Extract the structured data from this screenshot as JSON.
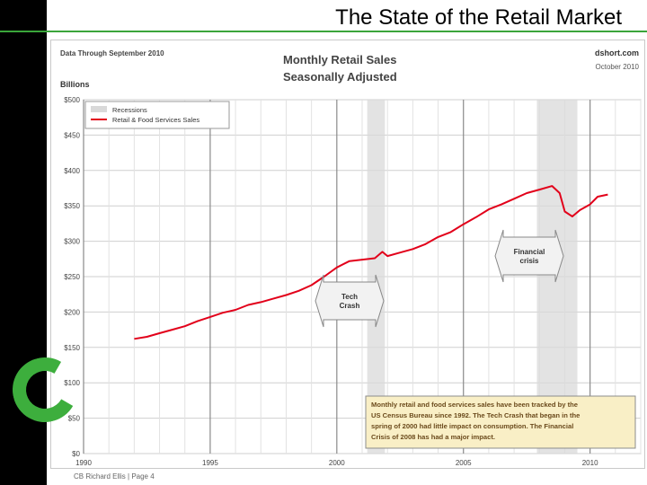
{
  "slide": {
    "title": "The State of the Retail Market",
    "footer": "CB Richard Ellis | Page 4"
  },
  "chart_data": {
    "type": "line",
    "title": "Monthly Retail Sales",
    "subtitle": "Seasonally Adjusted",
    "note_left": "Data Through September 2010",
    "source": "dshort.com",
    "date": "October 2010",
    "ylabel": "Billions",
    "ylim": [
      0,
      500
    ],
    "xlim": [
      1990,
      2012
    ],
    "y_ticks": [
      "$0",
      "$50",
      "$100",
      "$150",
      "$200",
      "$250",
      "$300",
      "$350",
      "$400",
      "$450",
      "$500"
    ],
    "x_ticks": [
      "1990",
      "1995",
      "2000",
      "2005",
      "2010"
    ],
    "grid": true,
    "legend_position": "top-left",
    "legend": [
      "Recessions",
      "Retail & Food Services Sales"
    ],
    "recessions": [
      [
        2001.2,
        2001.9
      ],
      [
        2007.9,
        2009.5
      ]
    ],
    "series": [
      {
        "name": "Retail & Food Services Sales",
        "color": "#e2001a",
        "points": [
          [
            1992.0,
            162
          ],
          [
            1992.5,
            165
          ],
          [
            1993.0,
            170
          ],
          [
            1993.5,
            175
          ],
          [
            1994.0,
            180
          ],
          [
            1994.5,
            187
          ],
          [
            1995.0,
            193
          ],
          [
            1995.5,
            199
          ],
          [
            1996.0,
            203
          ],
          [
            1996.5,
            210
          ],
          [
            1997.0,
            214
          ],
          [
            1997.5,
            219
          ],
          [
            1998.0,
            224
          ],
          [
            1998.5,
            230
          ],
          [
            1999.0,
            238
          ],
          [
            1999.5,
            250
          ],
          [
            2000.0,
            263
          ],
          [
            2000.5,
            272
          ],
          [
            2001.0,
            274
          ],
          [
            2001.5,
            276
          ],
          [
            2001.8,
            285
          ],
          [
            2002.0,
            279
          ],
          [
            2002.5,
            284
          ],
          [
            2003.0,
            289
          ],
          [
            2003.5,
            296
          ],
          [
            2004.0,
            306
          ],
          [
            2004.5,
            313
          ],
          [
            2005.0,
            324
          ],
          [
            2005.5,
            334
          ],
          [
            2006.0,
            345
          ],
          [
            2006.5,
            352
          ],
          [
            2007.0,
            360
          ],
          [
            2007.5,
            368
          ],
          [
            2008.0,
            373
          ],
          [
            2008.5,
            378
          ],
          [
            2008.8,
            368
          ],
          [
            2009.0,
            342
          ],
          [
            2009.3,
            335
          ],
          [
            2009.6,
            344
          ],
          [
            2010.0,
            352
          ],
          [
            2010.3,
            363
          ],
          [
            2010.7,
            366
          ]
        ]
      }
    ],
    "annotations": [
      {
        "label": "Tech Crash",
        "lines": [
          "Tech",
          "Crash"
        ]
      },
      {
        "label": "Financial crisis",
        "lines": [
          "Financial",
          "crisis"
        ]
      }
    ],
    "note_box": [
      "Monthly retail and food services sales have been tracked by the",
      "US Census Bureau since 1992. The Tech Crash that began in the",
      "spring of 2000  had little impact on consumption. The Financial",
      "Crisis of 2008 has had a major impact."
    ]
  }
}
